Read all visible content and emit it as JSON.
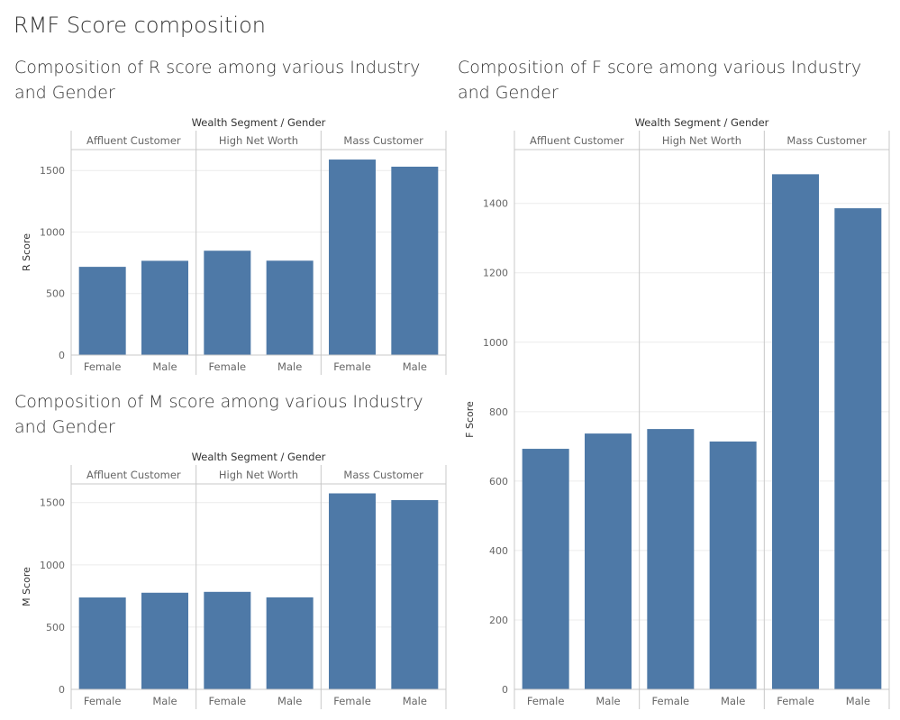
{
  "dashboard_title": "RMF Score composition",
  "colors": {
    "bar": "#4e79a7",
    "grid": "#ececec",
    "rule": "#c8c8c8"
  },
  "chart_data": [
    {
      "id": "r",
      "type": "bar",
      "title": "Composition of R score among various Industry and Gender",
      "header": "Wealth Segment / Gender",
      "groups": [
        "Affluent Customer",
        "High Net Worth",
        "Mass Customer"
      ],
      "categories": [
        "Female",
        "Male",
        "Female",
        "Male",
        "Female",
        "Male"
      ],
      "ylabel": "R Score",
      "ylim": [
        0,
        1670
      ],
      "yticks": [
        0,
        500,
        1000,
        1500
      ],
      "values": [
        717,
        766,
        848,
        767,
        1589,
        1531
      ]
    },
    {
      "id": "m",
      "type": "bar",
      "title": "Composition of M score among various Industry and Gender",
      "header": "Wealth Segment / Gender",
      "groups": [
        "Affluent Customer",
        "High Net Worth",
        "Mass Customer"
      ],
      "categories": [
        "Female",
        "Male",
        "Female",
        "Male",
        "Female",
        "Male"
      ],
      "ylabel": "M Score",
      "ylim": [
        0,
        1650
      ],
      "yticks": [
        0,
        500,
        1000,
        1500
      ],
      "values": [
        738,
        776,
        783,
        739,
        1574,
        1520
      ]
    },
    {
      "id": "f",
      "type": "bar",
      "title": "Composition of F score among various Industry and Gender",
      "header": "Wealth Segment / Gender",
      "groups": [
        "Affluent Customer",
        "High Net Worth",
        "Mass Customer"
      ],
      "categories": [
        "Female",
        "Male",
        "Female",
        "Male",
        "Female",
        "Male"
      ],
      "ylabel": "F Score",
      "ylim": [
        0,
        1555
      ],
      "yticks": [
        0,
        200,
        400,
        600,
        800,
        1000,
        1200,
        1400
      ],
      "values": [
        693,
        737,
        750,
        714,
        1484,
        1386
      ]
    }
  ]
}
